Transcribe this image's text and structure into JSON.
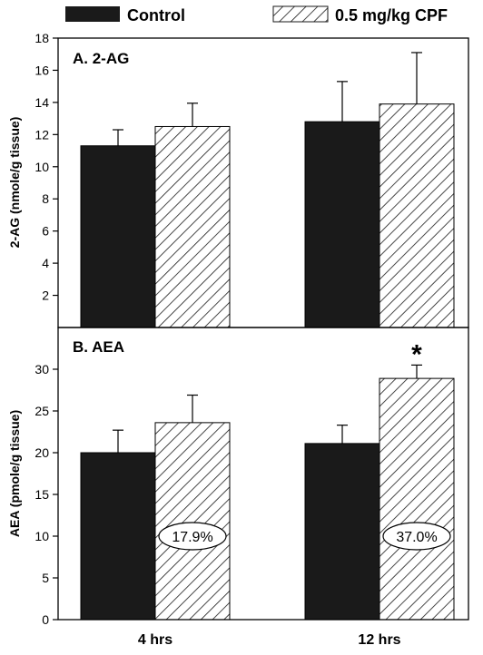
{
  "legend": {
    "control": "Control",
    "cpf": "0.5 mg/kg CPF"
  },
  "colors": {
    "control": "#1a1a1a",
    "cpf_hatch": "#1a1a1a",
    "background": "#ffffff"
  },
  "chart_data": [
    {
      "type": "bar",
      "title": "A. 2-AG",
      "ylabel": "2-AG (nmole/g tissue)",
      "categories": [
        "4 hrs",
        "12 hrs"
      ],
      "ylim": [
        0,
        18
      ],
      "yticks": [
        2,
        4,
        6,
        8,
        10,
        12,
        14,
        16,
        18
      ],
      "series": [
        {
          "name": "Control",
          "values": [
            11.3,
            12.8
          ],
          "errors": [
            1.0,
            2.5
          ]
        },
        {
          "name": "0.5 mg/kg CPF",
          "values": [
            12.5,
            13.9
          ],
          "errors": [
            1.45,
            3.2
          ]
        }
      ],
      "annotations": []
    },
    {
      "type": "bar",
      "title": "B. AEA",
      "ylabel": "AEA (pmole/g tissue)",
      "categories": [
        "4 hrs",
        "12 hrs"
      ],
      "ylim": [
        0,
        35
      ],
      "yticks": [
        0,
        5,
        10,
        15,
        20,
        25,
        30
      ],
      "series": [
        {
          "name": "Control",
          "values": [
            20.0,
            21.1
          ],
          "errors": [
            2.7,
            2.2
          ]
        },
        {
          "name": "0.5 mg/kg CPF",
          "values": [
            23.6,
            28.9
          ],
          "errors": [
            3.3,
            1.6
          ]
        }
      ],
      "annotations": [
        {
          "category": "4 hrs",
          "series": "0.5 mg/kg CPF",
          "text": "17.9%"
        },
        {
          "category": "12 hrs",
          "series": "0.5 mg/kg CPF",
          "text": "37.0%"
        },
        {
          "category": "12 hrs",
          "series": "0.5 mg/kg CPF",
          "text": "*",
          "significance": true
        }
      ]
    }
  ]
}
